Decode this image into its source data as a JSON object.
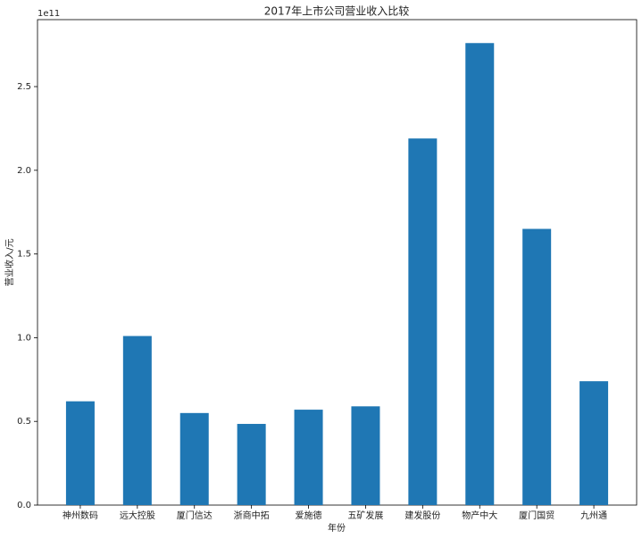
{
  "chart_data": {
    "type": "bar",
    "title": "2017年上市公司营业收入比较",
    "x_label": "年份",
    "y_label": "营业收入/元",
    "offset_text": "1e11",
    "categories": [
      "神州数码",
      "远大控股",
      "厦门信达",
      "浙商中拓",
      "爱施德",
      "五矿发展",
      "建发股份",
      "物产中大",
      "厦门国贸",
      "九州通"
    ],
    "values": [
      62000000000,
      101000000000,
      55000000000,
      48500000000,
      57000000000,
      59000000000,
      219000000000,
      276000000000,
      165000000000,
      74000000000
    ],
    "color": "#1f77b4",
    "ylim": [
      0,
      290000000000
    ],
    "yticks": [
      {
        "value": 0,
        "label": "0.0"
      },
      {
        "value": 50000000000,
        "label": "0.5"
      },
      {
        "value": 100000000000,
        "label": "1.0"
      },
      {
        "value": 150000000000,
        "label": "1.5"
      },
      {
        "value": 200000000000,
        "label": "2.0"
      },
      {
        "value": 250000000000,
        "label": "2.5"
      }
    ],
    "grid": false
  }
}
